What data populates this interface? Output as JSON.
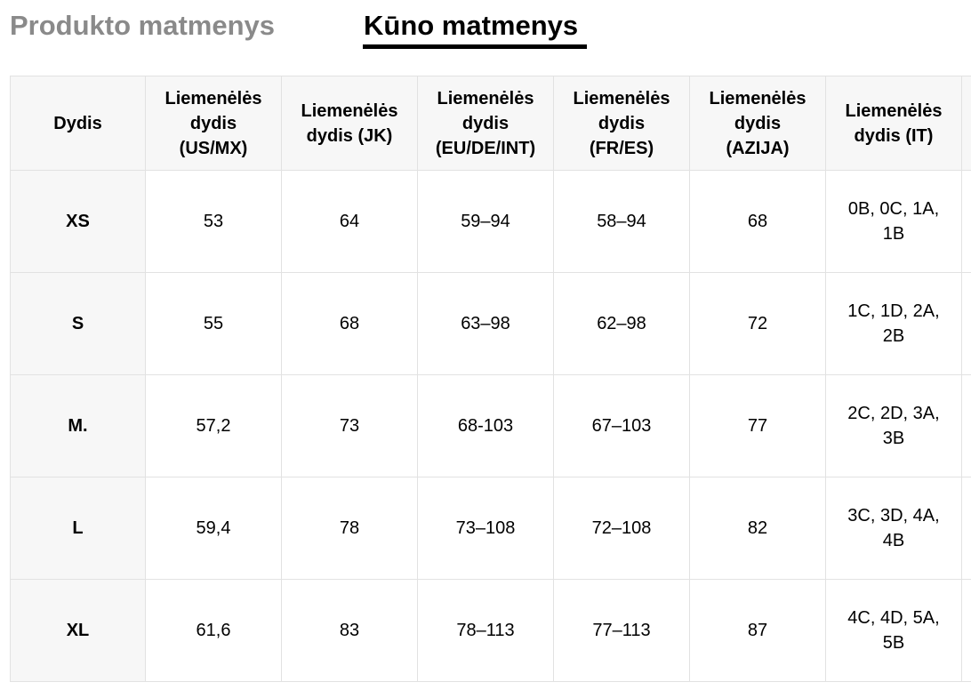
{
  "tabs": {
    "product": "Produkto matmenys",
    "body": "Kūno matmenys"
  },
  "table": {
    "headers": [
      "Dydis",
      "Liemenėlės dydis (US/MX)",
      "Liemenėlės dydis (JK)",
      "Liemenėlės dydis (EU/DE/INT)",
      "Liemenėlės dydis (FR/ES)",
      "Liemenėlės dydis (AZIJA)",
      "Liemenėlės dydis (IT)",
      ""
    ],
    "rows": [
      [
        "XS",
        "53",
        "64",
        "59–94",
        "58–94",
        "68",
        "0B, 0C, 1A, 1B",
        ""
      ],
      [
        "S",
        "55",
        "68",
        "63–98",
        "62–98",
        "72",
        "1C, 1D, 2A, 2B",
        ""
      ],
      [
        "M.",
        "57,2",
        "73",
        "68-103",
        "67–103",
        "77",
        "2C, 2D, 3A, 3B",
        ""
      ],
      [
        "L",
        "59,4",
        "78",
        "73–108",
        "72–108",
        "82",
        "3C, 3D, 4A, 4B",
        ""
      ],
      [
        "XL",
        "61,6",
        "83",
        "78–113",
        "77–113",
        "87",
        "4C, 4D, 5A, 5B",
        ""
      ]
    ]
  }
}
